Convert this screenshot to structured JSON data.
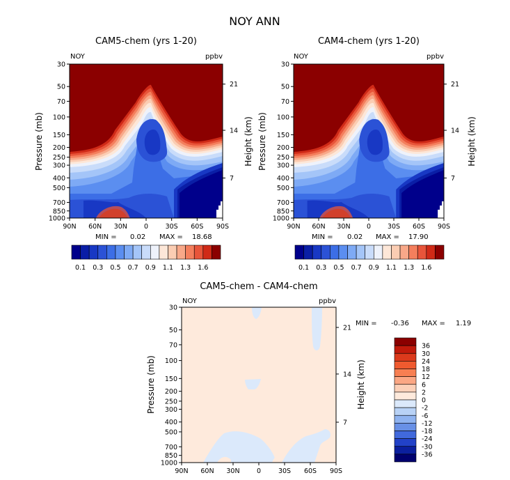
{
  "title": "NOY ANN",
  "chart_data": [
    {
      "type": "heatmap",
      "title": "CAM5-chem (yrs 1-20)",
      "variable": "NOY",
      "units": "ppbv",
      "ylabel": "Pressure (mb)",
      "ylabel_right": "Height (km)",
      "x_ticks": [
        "90N",
        "60N",
        "30N",
        "0",
        "30S",
        "60S",
        "90S"
      ],
      "y_ticks": [
        "30",
        "50",
        "70",
        "100",
        "150",
        "200",
        "250",
        "300",
        "400",
        "500",
        "700",
        "850",
        "1000"
      ],
      "y_right_ticks": [
        "21",
        "14",
        "7"
      ],
      "min_label": "MIN =",
      "min_value": "0.02",
      "max_label": "MAX =",
      "max_value": "18.68",
      "colorbar_labels": [
        "0.1",
        "0.3",
        "0.5",
        "0.7",
        "0.9",
        "1.1",
        "1.3",
        "1.6"
      ]
    },
    {
      "type": "heatmap",
      "title": "CAM4-chem (yrs 1-20)",
      "variable": "NOY",
      "units": "ppbv",
      "ylabel": "Pressure (mb)",
      "ylabel_right": "Height (km)",
      "x_ticks": [
        "90N",
        "60N",
        "30N",
        "0",
        "30S",
        "60S",
        "90S"
      ],
      "y_ticks": [
        "30",
        "50",
        "70",
        "100",
        "150",
        "200",
        "250",
        "300",
        "400",
        "500",
        "700",
        "850",
        "1000"
      ],
      "y_right_ticks": [
        "21",
        "14",
        "7"
      ],
      "min_label": "MIN =",
      "min_value": "0.02",
      "max_label": "MAX =",
      "max_value": "17.90",
      "colorbar_labels": [
        "0.1",
        "0.3",
        "0.5",
        "0.7",
        "0.9",
        "1.1",
        "1.3",
        "1.6"
      ]
    },
    {
      "type": "heatmap",
      "title": "CAM5-chem - CAM4-chem",
      "variable": "NOY",
      "units": "ppbv",
      "ylabel": "Pressure (mb)",
      "ylabel_right": "Height (km)",
      "x_ticks": [
        "90N",
        "60N",
        "30N",
        "0",
        "30S",
        "60S",
        "90S"
      ],
      "y_ticks": [
        "30",
        "50",
        "70",
        "100",
        "150",
        "200",
        "250",
        "300",
        "400",
        "500",
        "700",
        "850",
        "1000"
      ],
      "y_right_ticks": [
        "21",
        "14",
        "7"
      ],
      "min_label": "MIN =",
      "min_value": "-0.36",
      "max_label": "MAX =",
      "max_value": "1.19",
      "colorbar_labels": [
        "36",
        "30",
        "24",
        "18",
        "12",
        "6",
        "2",
        "0",
        "-2",
        "-6",
        "-12",
        "-18",
        "-24",
        "-30",
        "-36"
      ]
    }
  ],
  "colors": {
    "levels": [
      "#00008b",
      "#0a1ea6",
      "#1838c4",
      "#2b52d6",
      "#3c6ee6",
      "#5b8ef0",
      "#7eaaf5",
      "#a4c5f8",
      "#c9dcfa",
      "#eef2fb",
      "#fde7d8",
      "#fbcdb3",
      "#f8a889",
      "#f47f5d",
      "#e8553a",
      "#d02a17",
      "#8b0000"
    ],
    "diff_levels": [
      "#8b0000",
      "#c11a0b",
      "#dc3a1c",
      "#ef5a2f",
      "#f77f52",
      "#fba784",
      "#fcd0b8",
      "#feeadc",
      "#dbe9fb",
      "#b8d2f6",
      "#8fb3f0",
      "#6890e6",
      "#4169dc",
      "#2242c8",
      "#0b1f9e",
      "#00006e"
    ],
    "diff_bg": "#feeadc",
    "diff_patch": "#dbe9fb"
  }
}
